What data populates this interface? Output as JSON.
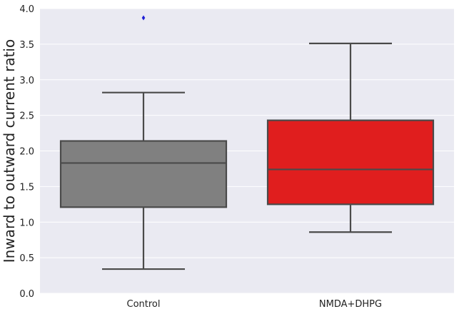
{
  "chart_data": {
    "type": "box",
    "title": "",
    "xlabel": "",
    "ylabel": "Inward to outward current ratio",
    "ylim": [
      0,
      4
    ],
    "yticks": [
      "0.0",
      "0.5",
      "1.0",
      "1.5",
      "2.0",
      "2.5",
      "3.0",
      "3.5",
      "4.0"
    ],
    "grid": true,
    "categories": [
      "Control",
      "NMDA+DHPG"
    ],
    "boxes": [
      {
        "name": "Control",
        "whisker_low": 0.34,
        "q1": 1.21,
        "median": 1.83,
        "q3": 2.14,
        "whisker_high": 2.82,
        "outliers": [
          3.87
        ],
        "color": "#808080"
      },
      {
        "name": "NMDA+DHPG",
        "whisker_low": 0.86,
        "q1": 1.25,
        "median": 1.74,
        "q3": 2.43,
        "whisker_high": 3.51,
        "outliers": [],
        "color": "#e01e1e"
      }
    ],
    "colors": {
      "background": "#eaeaf2",
      "grid": "#ffffff",
      "line": "#4a4a4a",
      "outlier": "#1f1fd6"
    }
  }
}
